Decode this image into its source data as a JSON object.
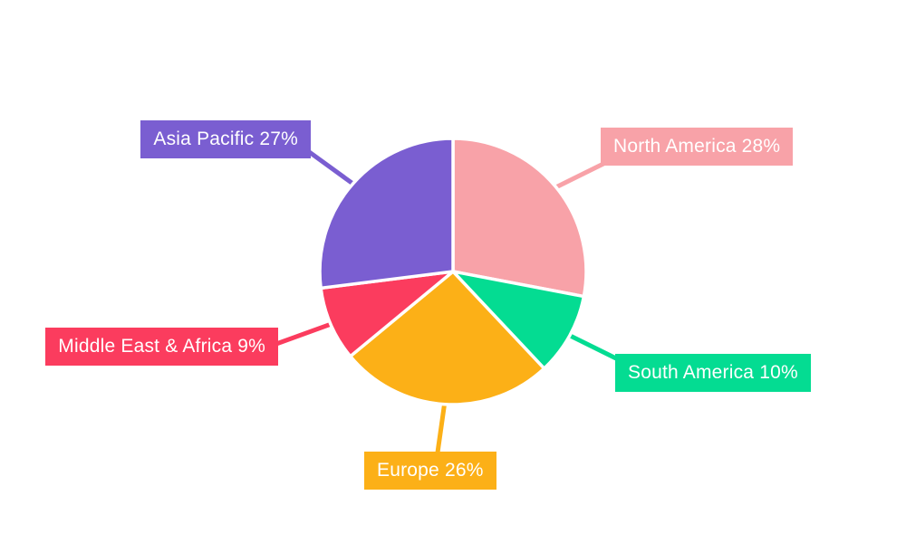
{
  "chart_data": {
    "type": "pie",
    "title": "",
    "unit": "%",
    "total": 100,
    "start_angle_deg": 0,
    "direction": "clockwise",
    "legend": "none",
    "label_style": "outside-callout-boxes",
    "background_color": "#ffffff",
    "label_text_color": "#ffffff",
    "slice_border_color": "#ffffff",
    "categories": [
      "North America",
      "South America",
      "Europe",
      "Middle East & Africa",
      "Asia Pacific"
    ],
    "values": [
      28,
      10,
      26,
      9,
      27
    ],
    "slices": [
      {
        "label": "North America",
        "value": 28,
        "display": "North America 28%",
        "color": "#f8a2a8"
      },
      {
        "label": "South America",
        "value": 10,
        "display": "South America 10%",
        "color": "#04dc92"
      },
      {
        "label": "Europe",
        "value": 26,
        "display": "Europe 26%",
        "color": "#fcb017"
      },
      {
        "label": "Middle East & Africa",
        "value": 9,
        "display": "Middle East & Africa 9%",
        "color": "#fb3c5e"
      },
      {
        "label": "Asia Pacific",
        "value": 27,
        "display": "Asia Pacific 27%",
        "color": "#7a5ed1"
      }
    ]
  }
}
